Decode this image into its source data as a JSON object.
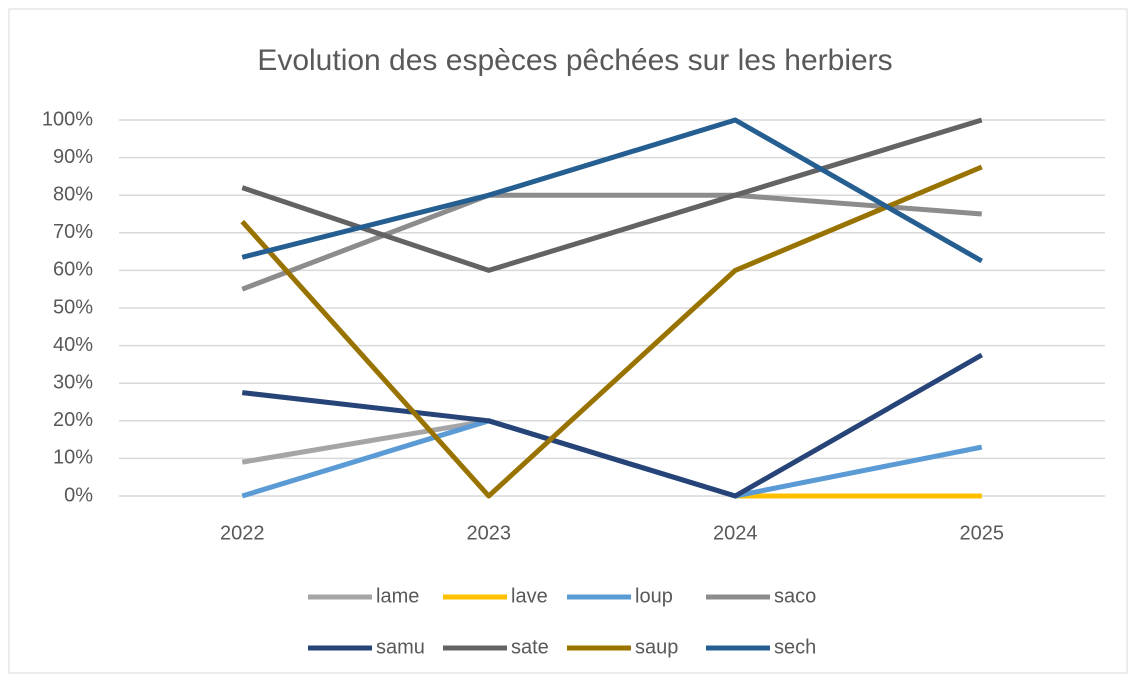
{
  "chart_data": {
    "type": "line",
    "title": "Evolution des espèces  pêchées sur les herbiers",
    "categories": [
      "2022",
      "2023",
      "2024",
      "2025"
    ],
    "series": [
      {
        "name": "lame",
        "color": "#a5a5a5",
        "values": [
          9,
          20,
          0,
          0
        ]
      },
      {
        "name": "lave",
        "color": "#ffc000",
        "values": [
          null,
          null,
          0,
          0
        ]
      },
      {
        "name": "loup",
        "color": "#5b9bd5",
        "values": [
          0,
          20,
          0,
          13
        ]
      },
      {
        "name": "saco",
        "color": "#8c8c8c",
        "values": [
          55,
          80,
          80,
          75
        ]
      },
      {
        "name": "samu",
        "color": "#264478",
        "values": [
          27.5,
          20,
          0,
          37.5
        ]
      },
      {
        "name": "sate",
        "color": "#636363",
        "values": [
          82,
          60,
          80,
          100
        ]
      },
      {
        "name": "saup",
        "color": "#997300",
        "values": [
          73,
          0,
          60,
          87.5
        ]
      },
      {
        "name": "sech",
        "color": "#255e91",
        "values": [
          63.5,
          80,
          100,
          62.5
        ]
      }
    ],
    "ylim": [
      0,
      100
    ],
    "yticks": [
      {
        "value": 0,
        "label": "0%"
      },
      {
        "value": 10,
        "label": "10%"
      },
      {
        "value": 20,
        "label": "20%"
      },
      {
        "value": 30,
        "label": "30%"
      },
      {
        "value": 40,
        "label": "40%"
      },
      {
        "value": 50,
        "label": "50%"
      },
      {
        "value": 60,
        "label": "60%"
      },
      {
        "value": 70,
        "label": "70%"
      },
      {
        "value": 80,
        "label": "80%"
      },
      {
        "value": 90,
        "label": "90%"
      },
      {
        "value": 100,
        "label": "100%"
      }
    ],
    "grid": true,
    "legend": "bottom"
  }
}
